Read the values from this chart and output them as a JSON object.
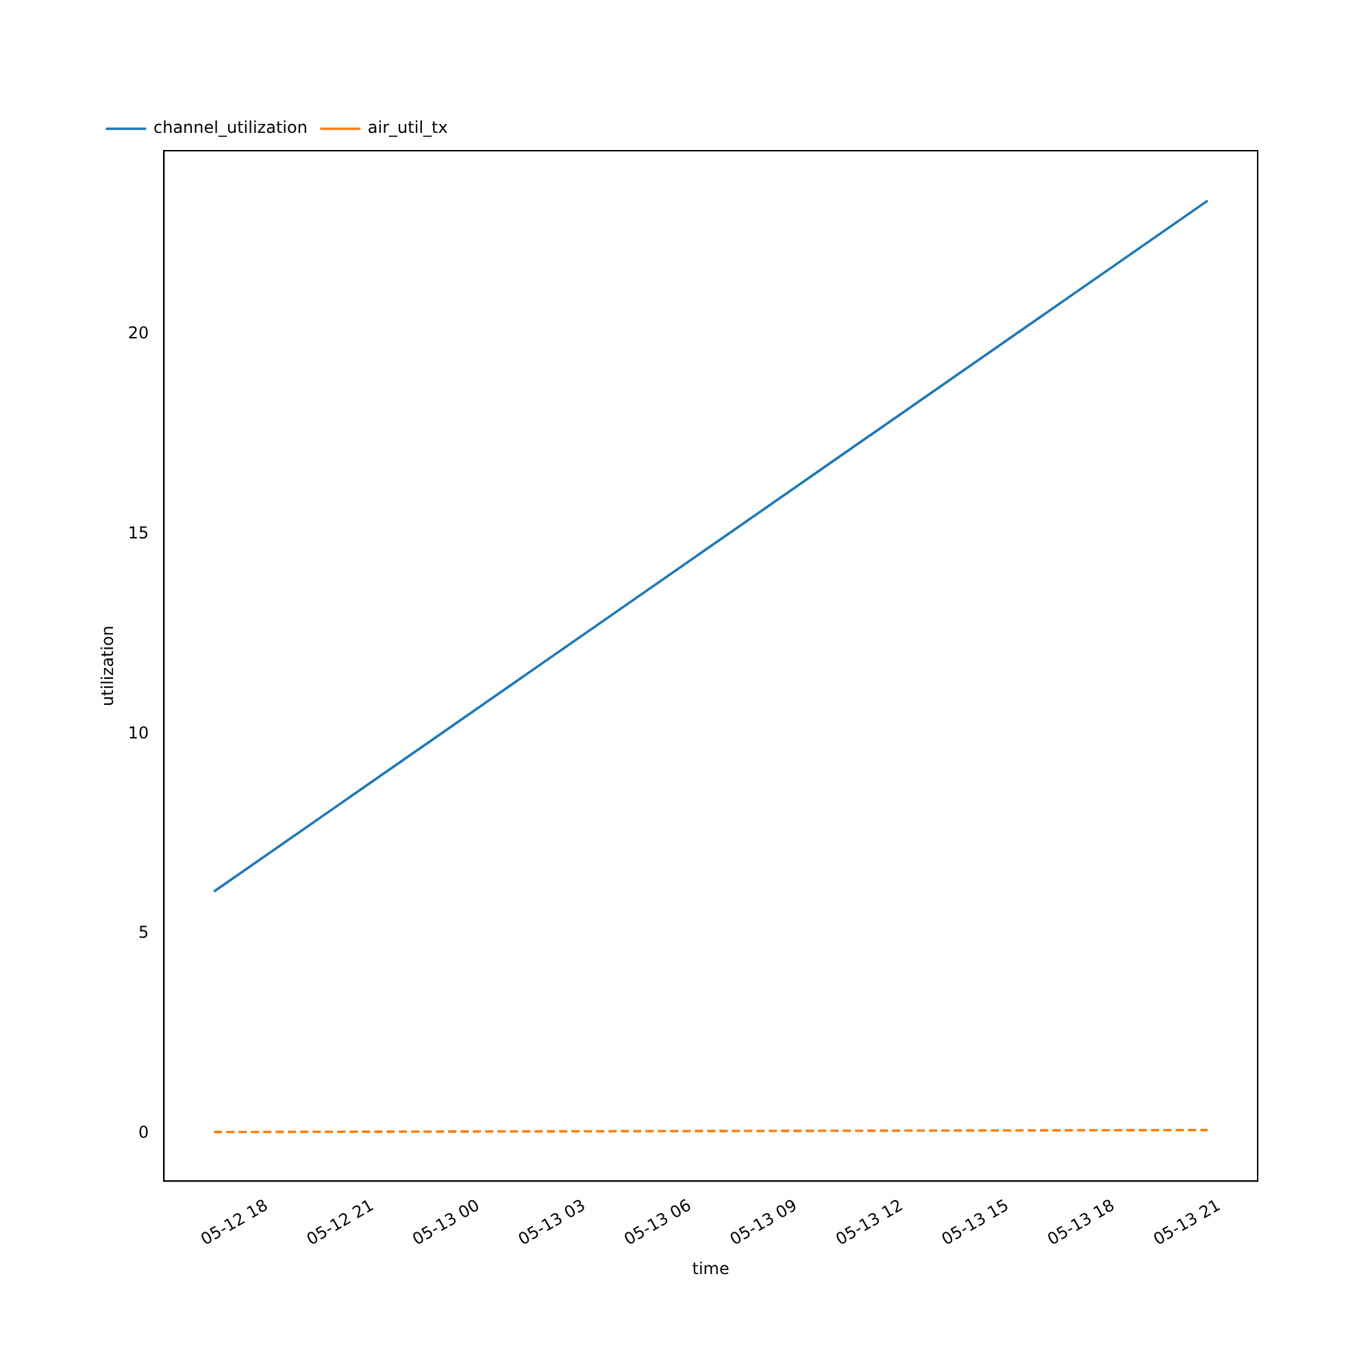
{
  "chart_data": {
    "type": "line",
    "xlabel": "time",
    "ylabel": "utilization",
    "series": [
      {
        "name": "channel_utilization",
        "color": "#1f77b4",
        "line_style": "solid",
        "x": [
          "--05-12T16:30",
          "--05-13T20:40"
        ],
        "values": [
          6.05,
          23.35
        ]
      },
      {
        "name": "air_util_tx",
        "color": "#ff7f0e",
        "line_style": "dashed",
        "x": [
          "--05-12T16:30",
          "--05-13T20:40"
        ],
        "values": [
          0.03,
          0.08
        ]
      }
    ],
    "xlim": [
      "--05-12T15:05",
      "--05-13T22:05"
    ],
    "xticks": [
      {
        "value": "--05-12T18:00",
        "label": "05-12 18"
      },
      {
        "value": "--05-12T21:00",
        "label": "05-12 21"
      },
      {
        "value": "--05-13T00:00",
        "label": "05-13 00"
      },
      {
        "value": "--05-13T03:00",
        "label": "05-13 03"
      },
      {
        "value": "--05-13T06:00",
        "label": "05-13 06"
      },
      {
        "value": "--05-13T09:00",
        "label": "05-13 09"
      },
      {
        "value": "--05-13T12:00",
        "label": "05-13 12"
      },
      {
        "value": "--05-13T15:00",
        "label": "05-13 15"
      },
      {
        "value": "--05-13T18:00",
        "label": "05-13 18"
      },
      {
        "value": "--05-13T21:00",
        "label": "05-13 21"
      }
    ],
    "ylim": [
      -1.2,
      24.6
    ],
    "yticks": [
      0,
      5,
      10,
      15,
      20
    ],
    "grid": false,
    "legend": "top left",
    "marker": "none"
  }
}
